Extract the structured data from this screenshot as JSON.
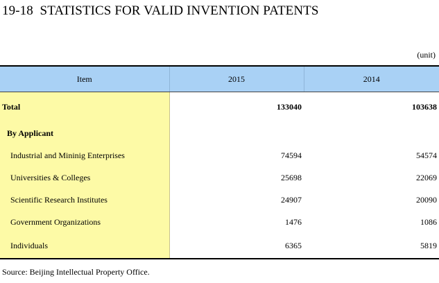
{
  "title": "19-18  STATISTICS FOR VALID INVENTION PATENTS",
  "unit": "(unit)",
  "table": {
    "headers": [
      "Item",
      "2015",
      "2014"
    ],
    "rows": [
      {
        "label": "Total",
        "v2015": "133040",
        "v2014": "103638"
      },
      {
        "label": "By Applicant",
        "v2015": "",
        "v2014": ""
      },
      {
        "label": "Industrial and Mininig Enterprises",
        "v2015": "74594",
        "v2014": "54574"
      },
      {
        "label": "Universities & Colleges",
        "v2015": "25698",
        "v2014": "22069"
      },
      {
        "label": "Scientific Research Institutes",
        "v2015": "24907",
        "v2014": "20090"
      },
      {
        "label": "Government Organizations",
        "v2015": "1476",
        "v2014": "1086"
      },
      {
        "label": "Individuals",
        "v2015": "6365",
        "v2014": "5819"
      }
    ]
  },
  "colors": {
    "header_bg": "#a9d1f5",
    "item_col_bg": "#fdfaa6"
  },
  "source": "Source: Beijing Intellectual Property Office."
}
